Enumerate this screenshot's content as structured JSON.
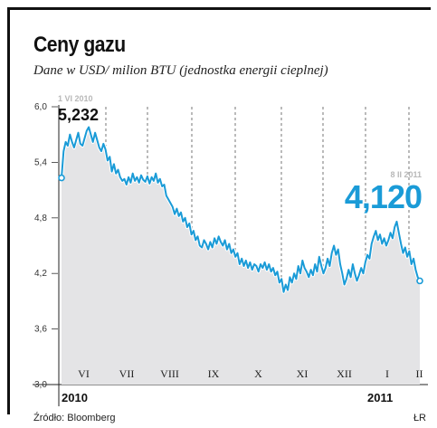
{
  "title": "Ceny gazu",
  "subtitle": "Dane w USD/ milion BTU (jednostka energii cieplnej)",
  "source": "Źródło: Bloomberg",
  "credit": "ŁR",
  "colors": {
    "line": "#1a9bd7",
    "fill": "#e4e4e6",
    "text": "#111111"
  },
  "chart_data": {
    "type": "area",
    "ylim": [
      3.0,
      6.0
    ],
    "yticks": [
      "6,0",
      "5,4",
      "4,8",
      "4,2",
      "3,6",
      "3,0"
    ],
    "ytick_values": [
      6.0,
      5.4,
      4.8,
      4.2,
      3.6,
      3.0
    ],
    "months": [
      "VI",
      "VII",
      "VIII",
      "IX",
      "X",
      "XI",
      "XII",
      "I",
      "II"
    ],
    "years": [
      "2010",
      "2011"
    ],
    "start": {
      "date": "1 VI 2010",
      "value": "5,232"
    },
    "end": {
      "date": "8 II 2011",
      "value": "4,120"
    },
    "grid": "vertical-dashed",
    "values": [
      5.232,
      5.52,
      5.62,
      5.58,
      5.7,
      5.62,
      5.56,
      5.64,
      5.72,
      5.6,
      5.58,
      5.66,
      5.74,
      5.78,
      5.7,
      5.62,
      5.72,
      5.64,
      5.56,
      5.52,
      5.6,
      5.54,
      5.42,
      5.46,
      5.3,
      5.38,
      5.28,
      5.32,
      5.24,
      5.2,
      5.22,
      5.16,
      5.24,
      5.18,
      5.28,
      5.2,
      5.24,
      5.18,
      5.26,
      5.21,
      5.19,
      5.25,
      5.17,
      5.24,
      5.2,
      5.28,
      5.18,
      5.22,
      5.14,
      5.16,
      5.04,
      5.0,
      4.96,
      4.92,
      4.84,
      4.9,
      4.82,
      4.86,
      4.76,
      4.8,
      4.7,
      4.74,
      4.62,
      4.66,
      4.56,
      4.6,
      4.5,
      4.48,
      4.56,
      4.52,
      4.46,
      4.54,
      4.48,
      4.58,
      4.52,
      4.6,
      4.54,
      4.5,
      4.56,
      4.46,
      4.52,
      4.42,
      4.46,
      4.38,
      4.42,
      4.3,
      4.36,
      4.28,
      4.34,
      4.26,
      4.32,
      4.24,
      4.3,
      4.28,
      4.22,
      4.3,
      4.26,
      4.32,
      4.24,
      4.3,
      4.22,
      4.26,
      4.18,
      4.22,
      4.1,
      4.14,
      4.0,
      4.08,
      4.02,
      4.16,
      4.1,
      4.2,
      4.14,
      4.28,
      4.2,
      4.34,
      4.26,
      4.22,
      4.16,
      4.24,
      4.18,
      4.3,
      4.22,
      4.38,
      4.28,
      4.2,
      4.26,
      4.36,
      4.28,
      4.42,
      4.5,
      4.4,
      4.46,
      4.3,
      4.2,
      4.08,
      4.14,
      4.24,
      4.16,
      4.3,
      4.2,
      4.12,
      4.18,
      4.26,
      4.2,
      4.32,
      4.4,
      4.36,
      4.52,
      4.6,
      4.66,
      4.56,
      4.62,
      4.52,
      4.58,
      4.5,
      4.56,
      4.64,
      4.58,
      4.7,
      4.76,
      4.64,
      4.52,
      4.42,
      4.48,
      4.38,
      4.44,
      4.3,
      4.36,
      4.24,
      4.16,
      4.12
    ]
  }
}
